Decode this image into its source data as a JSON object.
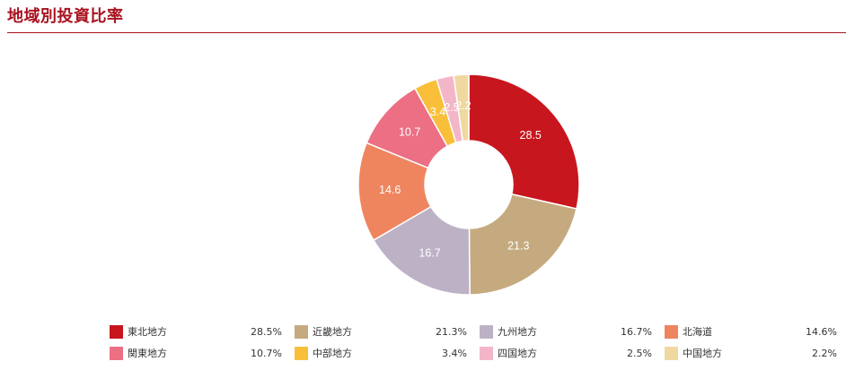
{
  "header": {
    "title": "地域別投資比率"
  },
  "chart_data": {
    "type": "pie",
    "donut": true,
    "categories": [
      "東北地方",
      "近畿地方",
      "九州地方",
      "北海道",
      "関東地方",
      "中部地方",
      "四国地方",
      "中国地方"
    ],
    "values": [
      28.5,
      21.3,
      16.7,
      14.6,
      10.7,
      3.4,
      2.5,
      2.2
    ],
    "slice_labels": [
      "28.5",
      "21.3",
      "16.7",
      "14.6",
      "10.7",
      "3.4",
      "2.5",
      "2.2"
    ],
    "colors": [
      "#c8161e",
      "#c6aa7f",
      "#bdb2c5",
      "#ef855f",
      "#ec6f84",
      "#f9bf3b",
      "#f3b6c8",
      "#efd9a0"
    ],
    "legend_position": "bottom",
    "legend": [
      {
        "name": "東北地方",
        "value": "28.5%"
      },
      {
        "name": "近畿地方",
        "value": "21.3%"
      },
      {
        "name": "九州地方",
        "value": "16.7%"
      },
      {
        "name": "北海道",
        "value": "14.6%"
      },
      {
        "name": "関東地方",
        "value": "10.7%"
      },
      {
        "name": "中部地方",
        "value": "3.4%"
      },
      {
        "name": "四国地方",
        "value": "2.5%"
      },
      {
        "name": "中国地方",
        "value": "2.2%"
      }
    ]
  }
}
